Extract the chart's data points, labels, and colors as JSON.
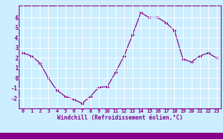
{
  "x": [
    0,
    1,
    2,
    3,
    4,
    5,
    6,
    7,
    8,
    9,
    10,
    11,
    12,
    13,
    14,
    15,
    16,
    17,
    18,
    19,
    20,
    21,
    22,
    23
  ],
  "y": [
    2.5,
    2.2,
    1.5,
    0.0,
    -1.2,
    -1.8,
    -2.1,
    -2.5,
    -1.8,
    -0.9,
    -0.85,
    0.6,
    2.2,
    4.3,
    6.5,
    6.0,
    6.0,
    5.5,
    4.7,
    1.9,
    1.6,
    2.2,
    2.5,
    2.0
  ],
  "xlabel": "Windchill (Refroidissement éolien,°C)",
  "xlim": [
    -0.5,
    23.5
  ],
  "ylim": [
    -3.0,
    7.2
  ],
  "yticks": [
    -2,
    -1,
    0,
    1,
    2,
    3,
    4,
    5,
    6
  ],
  "xticks": [
    0,
    1,
    2,
    3,
    4,
    5,
    6,
    7,
    8,
    9,
    10,
    11,
    12,
    13,
    14,
    15,
    16,
    17,
    18,
    19,
    20,
    21,
    22,
    23
  ],
  "line_color": "#880088",
  "marker": "D",
  "marker_size": 2.2,
  "bg_color": "#cceeff",
  "plot_bg_color": "#cceeff",
  "grid_color": "#ffffff",
  "axis_label_color": "#880088",
  "axis_tick_color": "#880088",
  "spine_color": "#880088",
  "bottom_bar_color": "#880088",
  "xlabel_fontsize": 5.8,
  "tick_fontsize": 5.2
}
